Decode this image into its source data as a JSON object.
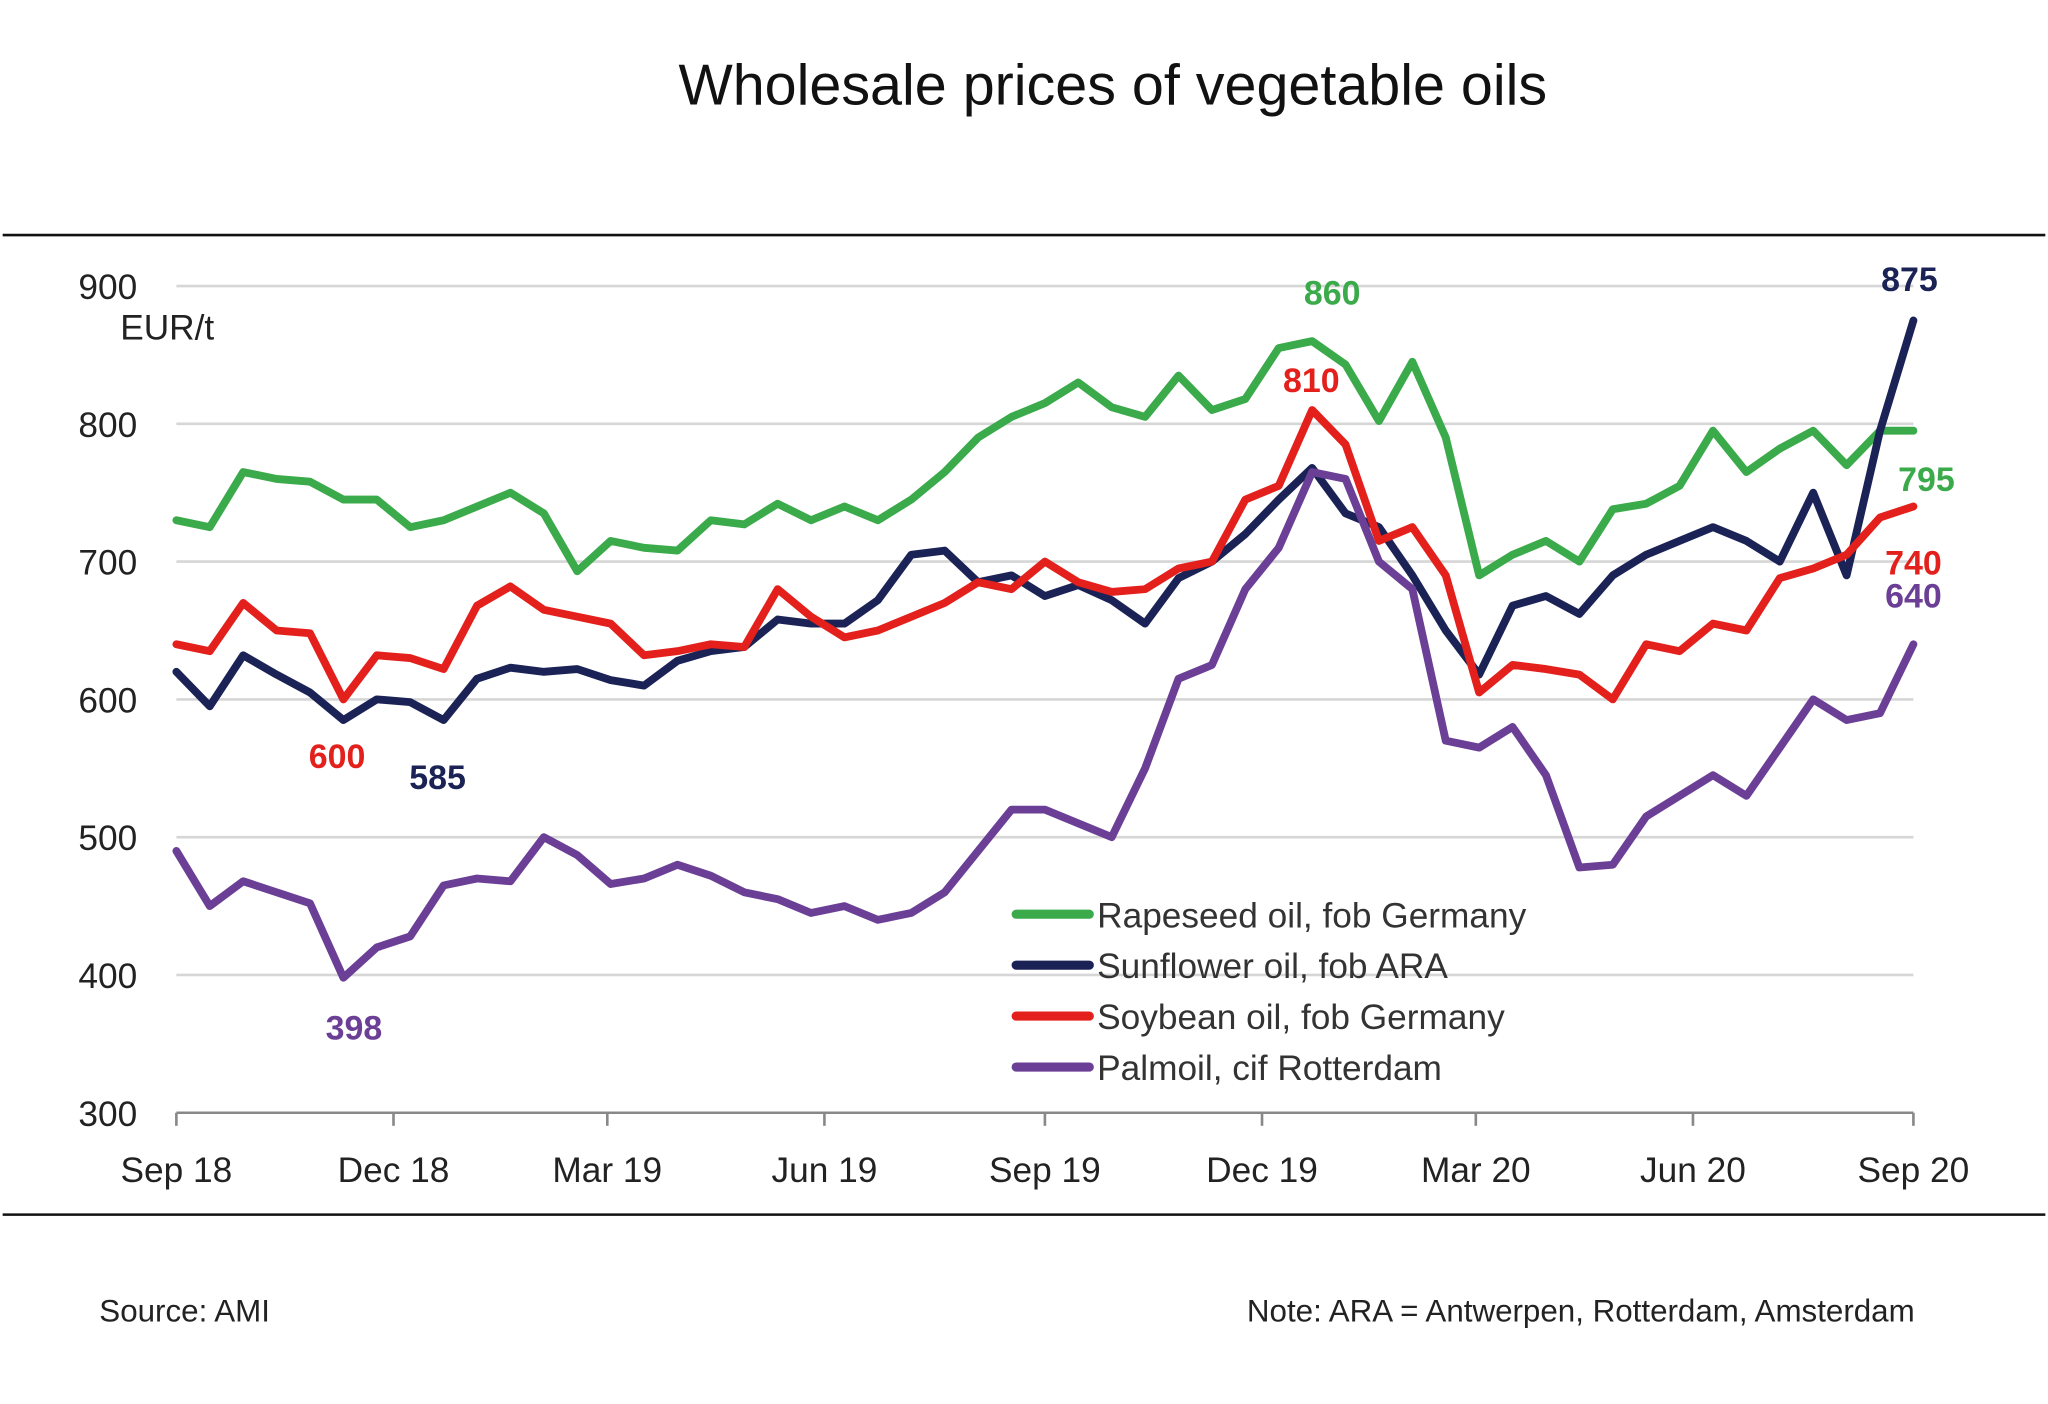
{
  "chart_data": {
    "type": "line",
    "title": "Wholesale prices of vegetable oils",
    "ylabel": "EUR/t",
    "xlabel": "",
    "ylim": [
      300,
      900
    ],
    "yticks": [
      300,
      400,
      500,
      600,
      700,
      800,
      900
    ],
    "grid": true,
    "x_unit": "biweekly index from Sep 18 (0) to Sep 20 (52)",
    "xlim": [
      0,
      52
    ],
    "xticks": [
      {
        "label": "Sep 18",
        "x": 0
      },
      {
        "label": "Dec 18",
        "x": 6.5
      },
      {
        "label": "Mar 19",
        "x": 12.9
      },
      {
        "label": "Jun 19",
        "x": 19.4
      },
      {
        "label": "Sep 19",
        "x": 26
      },
      {
        "label": "Dec 19",
        "x": 32.5
      },
      {
        "label": "Mar 20",
        "x": 38.9
      },
      {
        "label": "Jun 20",
        "x": 45.4
      },
      {
        "label": "Sep 20",
        "x": 52
      }
    ],
    "legend_position": "bottom-right",
    "series": [
      {
        "name": "Rapeseed oil, fob Germany",
        "color": "#3aaa4a",
        "values": [
          730,
          725,
          765,
          760,
          758,
          745,
          745,
          725,
          730,
          740,
          750,
          735,
          693,
          715,
          710,
          708,
          730,
          727,
          742,
          730,
          740,
          730,
          745,
          765,
          790,
          805,
          815,
          830,
          812,
          805,
          835,
          810,
          818,
          855,
          860,
          843,
          802,
          845,
          790,
          690,
          705,
          715,
          700,
          738,
          742,
          755,
          795,
          765,
          782,
          795,
          770,
          795,
          795
        ]
      },
      {
        "name": "Sunflower oil, fob ARA",
        "color": "#1b2356",
        "values": [
          620,
          595,
          632,
          618,
          605,
          585,
          600,
          598,
          585,
          615,
          623,
          620,
          622,
          614,
          610,
          628,
          635,
          638,
          658,
          655,
          655,
          672,
          705,
          708,
          685,
          690,
          675,
          683,
          672,
          655,
          688,
          700,
          720,
          745,
          768,
          735,
          725,
          690,
          650,
          618,
          668,
          675,
          662,
          690,
          705,
          715,
          725,
          715,
          700,
          750,
          690,
          795,
          875
        ]
      },
      {
        "name": "Soybean oil, fob Germany",
        "color": "#e3201b",
        "values": [
          640,
          635,
          670,
          650,
          648,
          600,
          632,
          630,
          622,
          668,
          682,
          665,
          660,
          655,
          632,
          635,
          640,
          638,
          680,
          660,
          645,
          650,
          660,
          670,
          685,
          680,
          700,
          685,
          678,
          680,
          695,
          700,
          745,
          755,
          810,
          785,
          715,
          725,
          690,
          605,
          625,
          622,
          618,
          600,
          640,
          635,
          655,
          650,
          688,
          695,
          705,
          732,
          740
        ]
      },
      {
        "name": "Palmoil, cif Rotterdam",
        "color": "#6b3f96",
        "values": [
          490,
          450,
          468,
          460,
          452,
          398,
          420,
          428,
          465,
          470,
          468,
          500,
          487,
          466,
          470,
          480,
          472,
          460,
          455,
          445,
          450,
          440,
          445,
          460,
          490,
          520,
          520,
          510,
          500,
          550,
          615,
          625,
          680,
          710,
          765,
          760,
          700,
          680,
          570,
          565,
          580,
          545,
          478,
          480,
          515,
          530,
          545,
          530,
          565,
          600,
          585,
          590,
          640
        ]
      }
    ],
    "annotations": [
      {
        "text": "860",
        "series": "Rapeseed oil, fob Germany"
      },
      {
        "text": "875",
        "series": "Sunflower oil, fob ARA"
      },
      {
        "text": "810",
        "series": "Soybean oil, fob Germany"
      },
      {
        "text": "795",
        "series": "Rapeseed oil, fob Germany"
      },
      {
        "text": "740",
        "series": "Soybean oil, fob Germany"
      },
      {
        "text": "640",
        "series": "Palmoil, cif Rotterdam"
      },
      {
        "text": "600",
        "series": "Soybean oil, fob Germany"
      },
      {
        "text": "585",
        "series": "Sunflower oil, fob ARA"
      },
      {
        "text": "398",
        "series": "Palmoil, cif Rotterdam"
      }
    ]
  },
  "footer": {
    "source": "Source: AMI",
    "note": "Note: ARA = Antwerpen, Rotterdam, Amsterdam"
  }
}
